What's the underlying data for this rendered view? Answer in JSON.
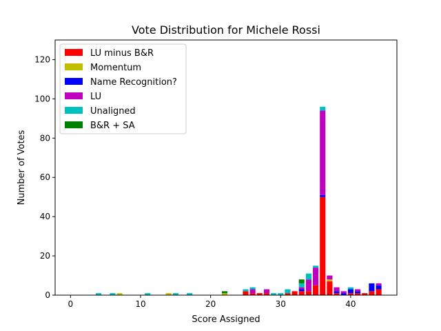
{
  "chart_data": {
    "type": "bar",
    "stacked": true,
    "title": "Vote Distribution for Michele Rossi",
    "xlabel": "Score Assigned",
    "ylabel": "Number of Votes",
    "xlim": [
      -2.2,
      46.6
    ],
    "ylim": [
      0,
      130
    ],
    "xticks": [
      0,
      10,
      20,
      30,
      40
    ],
    "yticks": [
      0,
      20,
      40,
      60,
      80,
      100,
      120
    ],
    "grid": false,
    "legend_position": "upper-left",
    "series": [
      {
        "name": "LU minus B&R",
        "color": "#ff0000",
        "points": [
          [
            25,
            2
          ],
          [
            26,
            1
          ],
          [
            27,
            1
          ],
          [
            28,
            1
          ],
          [
            31,
            1
          ],
          [
            32,
            2
          ],
          [
            33,
            2
          ],
          [
            34,
            2
          ],
          [
            35,
            5
          ],
          [
            36,
            50
          ],
          [
            37,
            7
          ],
          [
            38,
            1
          ],
          [
            40,
            1
          ],
          [
            41,
            1
          ],
          [
            42,
            1
          ],
          [
            43,
            2
          ],
          [
            44,
            3
          ]
        ]
      },
      {
        "name": "Momentum",
        "color": "#bfbf00",
        "points": [
          [
            7,
            1
          ],
          [
            14,
            1
          ],
          [
            22,
            1
          ],
          [
            37,
            1
          ]
        ]
      },
      {
        "name": "Name Recognition?",
        "color": "#0000ff",
        "points": [
          [
            33,
            1
          ],
          [
            36,
            1
          ],
          [
            38,
            1
          ],
          [
            39,
            1
          ],
          [
            40,
            2
          ],
          [
            41,
            1
          ],
          [
            43,
            4
          ],
          [
            44,
            2
          ]
        ]
      },
      {
        "name": "LU",
        "color": "#bf00bf",
        "points": [
          [
            26,
            2
          ],
          [
            28,
            2
          ],
          [
            33,
            1
          ],
          [
            34,
            6
          ],
          [
            35,
            9
          ],
          [
            36,
            43
          ],
          [
            37,
            2
          ],
          [
            38,
            2
          ],
          [
            39,
            1
          ],
          [
            41,
            1
          ],
          [
            44,
            1
          ]
        ]
      },
      {
        "name": "Unaligned",
        "color": "#00bfbf",
        "points": [
          [
            4,
            1
          ],
          [
            6,
            1
          ],
          [
            11,
            1
          ],
          [
            15,
            1
          ],
          [
            17,
            1
          ],
          [
            25,
            1
          ],
          [
            26,
            1
          ],
          [
            29,
            1
          ],
          [
            30,
            1
          ],
          [
            31,
            2
          ],
          [
            33,
            2
          ],
          [
            34,
            3
          ],
          [
            35,
            1
          ],
          [
            36,
            2
          ],
          [
            40,
            1
          ]
        ]
      },
      {
        "name": "B&R + SA",
        "color": "#008000",
        "points": [
          [
            22,
            1
          ],
          [
            33,
            2
          ]
        ]
      }
    ]
  }
}
